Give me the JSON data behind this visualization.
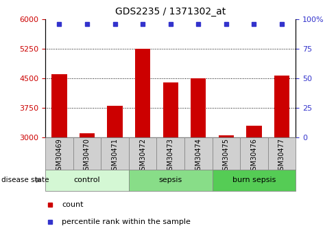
{
  "title": "GDS2235 / 1371302_at",
  "samples": [
    "GSM30469",
    "GSM30470",
    "GSM30471",
    "GSM30472",
    "GSM30473",
    "GSM30474",
    "GSM30475",
    "GSM30476",
    "GSM30477"
  ],
  "counts": [
    4600,
    3100,
    3800,
    5250,
    4400,
    4490,
    3050,
    3300,
    4560
  ],
  "percentiles": [
    99,
    99,
    99,
    99,
    99,
    99,
    99,
    99,
    99
  ],
  "bar_color": "#cc0000",
  "dot_color": "#3333cc",
  "ylim_left": [
    3000,
    6000
  ],
  "ylim_right": [
    0,
    100
  ],
  "yticks_left": [
    3000,
    3750,
    4500,
    5250,
    6000
  ],
  "yticks_right": [
    0,
    25,
    50,
    75,
    100
  ],
  "groups": [
    {
      "label": "control",
      "start": 0,
      "end": 3,
      "color": "#d4f7d4"
    },
    {
      "label": "sepsis",
      "start": 3,
      "end": 6,
      "color": "#88dd88"
    },
    {
      "label": "burn sepsis",
      "start": 6,
      "end": 9,
      "color": "#55cc55"
    }
  ],
  "disease_state_label": "disease state",
  "legend": [
    {
      "label": "count",
      "color": "#cc0000"
    },
    {
      "label": "percentile rank within the sample",
      "color": "#3333cc"
    }
  ],
  "dotted_gridlines": [
    3750,
    4500,
    5250
  ],
  "bar_width": 0.55,
  "sample_box_color": "#d0d0d0",
  "axis_left_color": "#cc0000",
  "axis_right_color": "#3333cc"
}
